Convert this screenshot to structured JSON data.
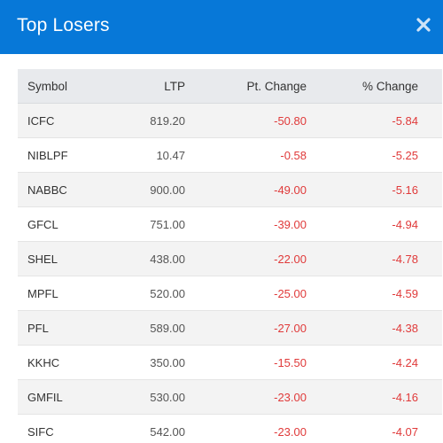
{
  "header": {
    "title": "Top Losers",
    "close_icon": "close-icon"
  },
  "colors": {
    "header_bg": "#0778d8",
    "negative": "#e03a3a"
  },
  "table": {
    "columns": [
      "Symbol",
      "LTP",
      "Pt. Change",
      "% Change"
    ],
    "rows": [
      [
        "ICFC",
        "819.20",
        "-50.80",
        "-5.84"
      ],
      [
        "NIBLPF",
        "10.47",
        "-0.58",
        "-5.25"
      ],
      [
        "NABBC",
        "900.00",
        "-49.00",
        "-5.16"
      ],
      [
        "GFCL",
        "751.00",
        "-39.00",
        "-4.94"
      ],
      [
        "SHEL",
        "438.00",
        "-22.00",
        "-4.78"
      ],
      [
        "MPFL",
        "520.00",
        "-25.00",
        "-4.59"
      ],
      [
        "PFL",
        "589.00",
        "-27.00",
        "-4.38"
      ],
      [
        "KKHC",
        "350.00",
        "-15.50",
        "-4.24"
      ],
      [
        "GMFIL",
        "530.00",
        "-23.00",
        "-4.16"
      ],
      [
        "SIFC",
        "542.00",
        "-23.00",
        "-4.07"
      ]
    ]
  }
}
